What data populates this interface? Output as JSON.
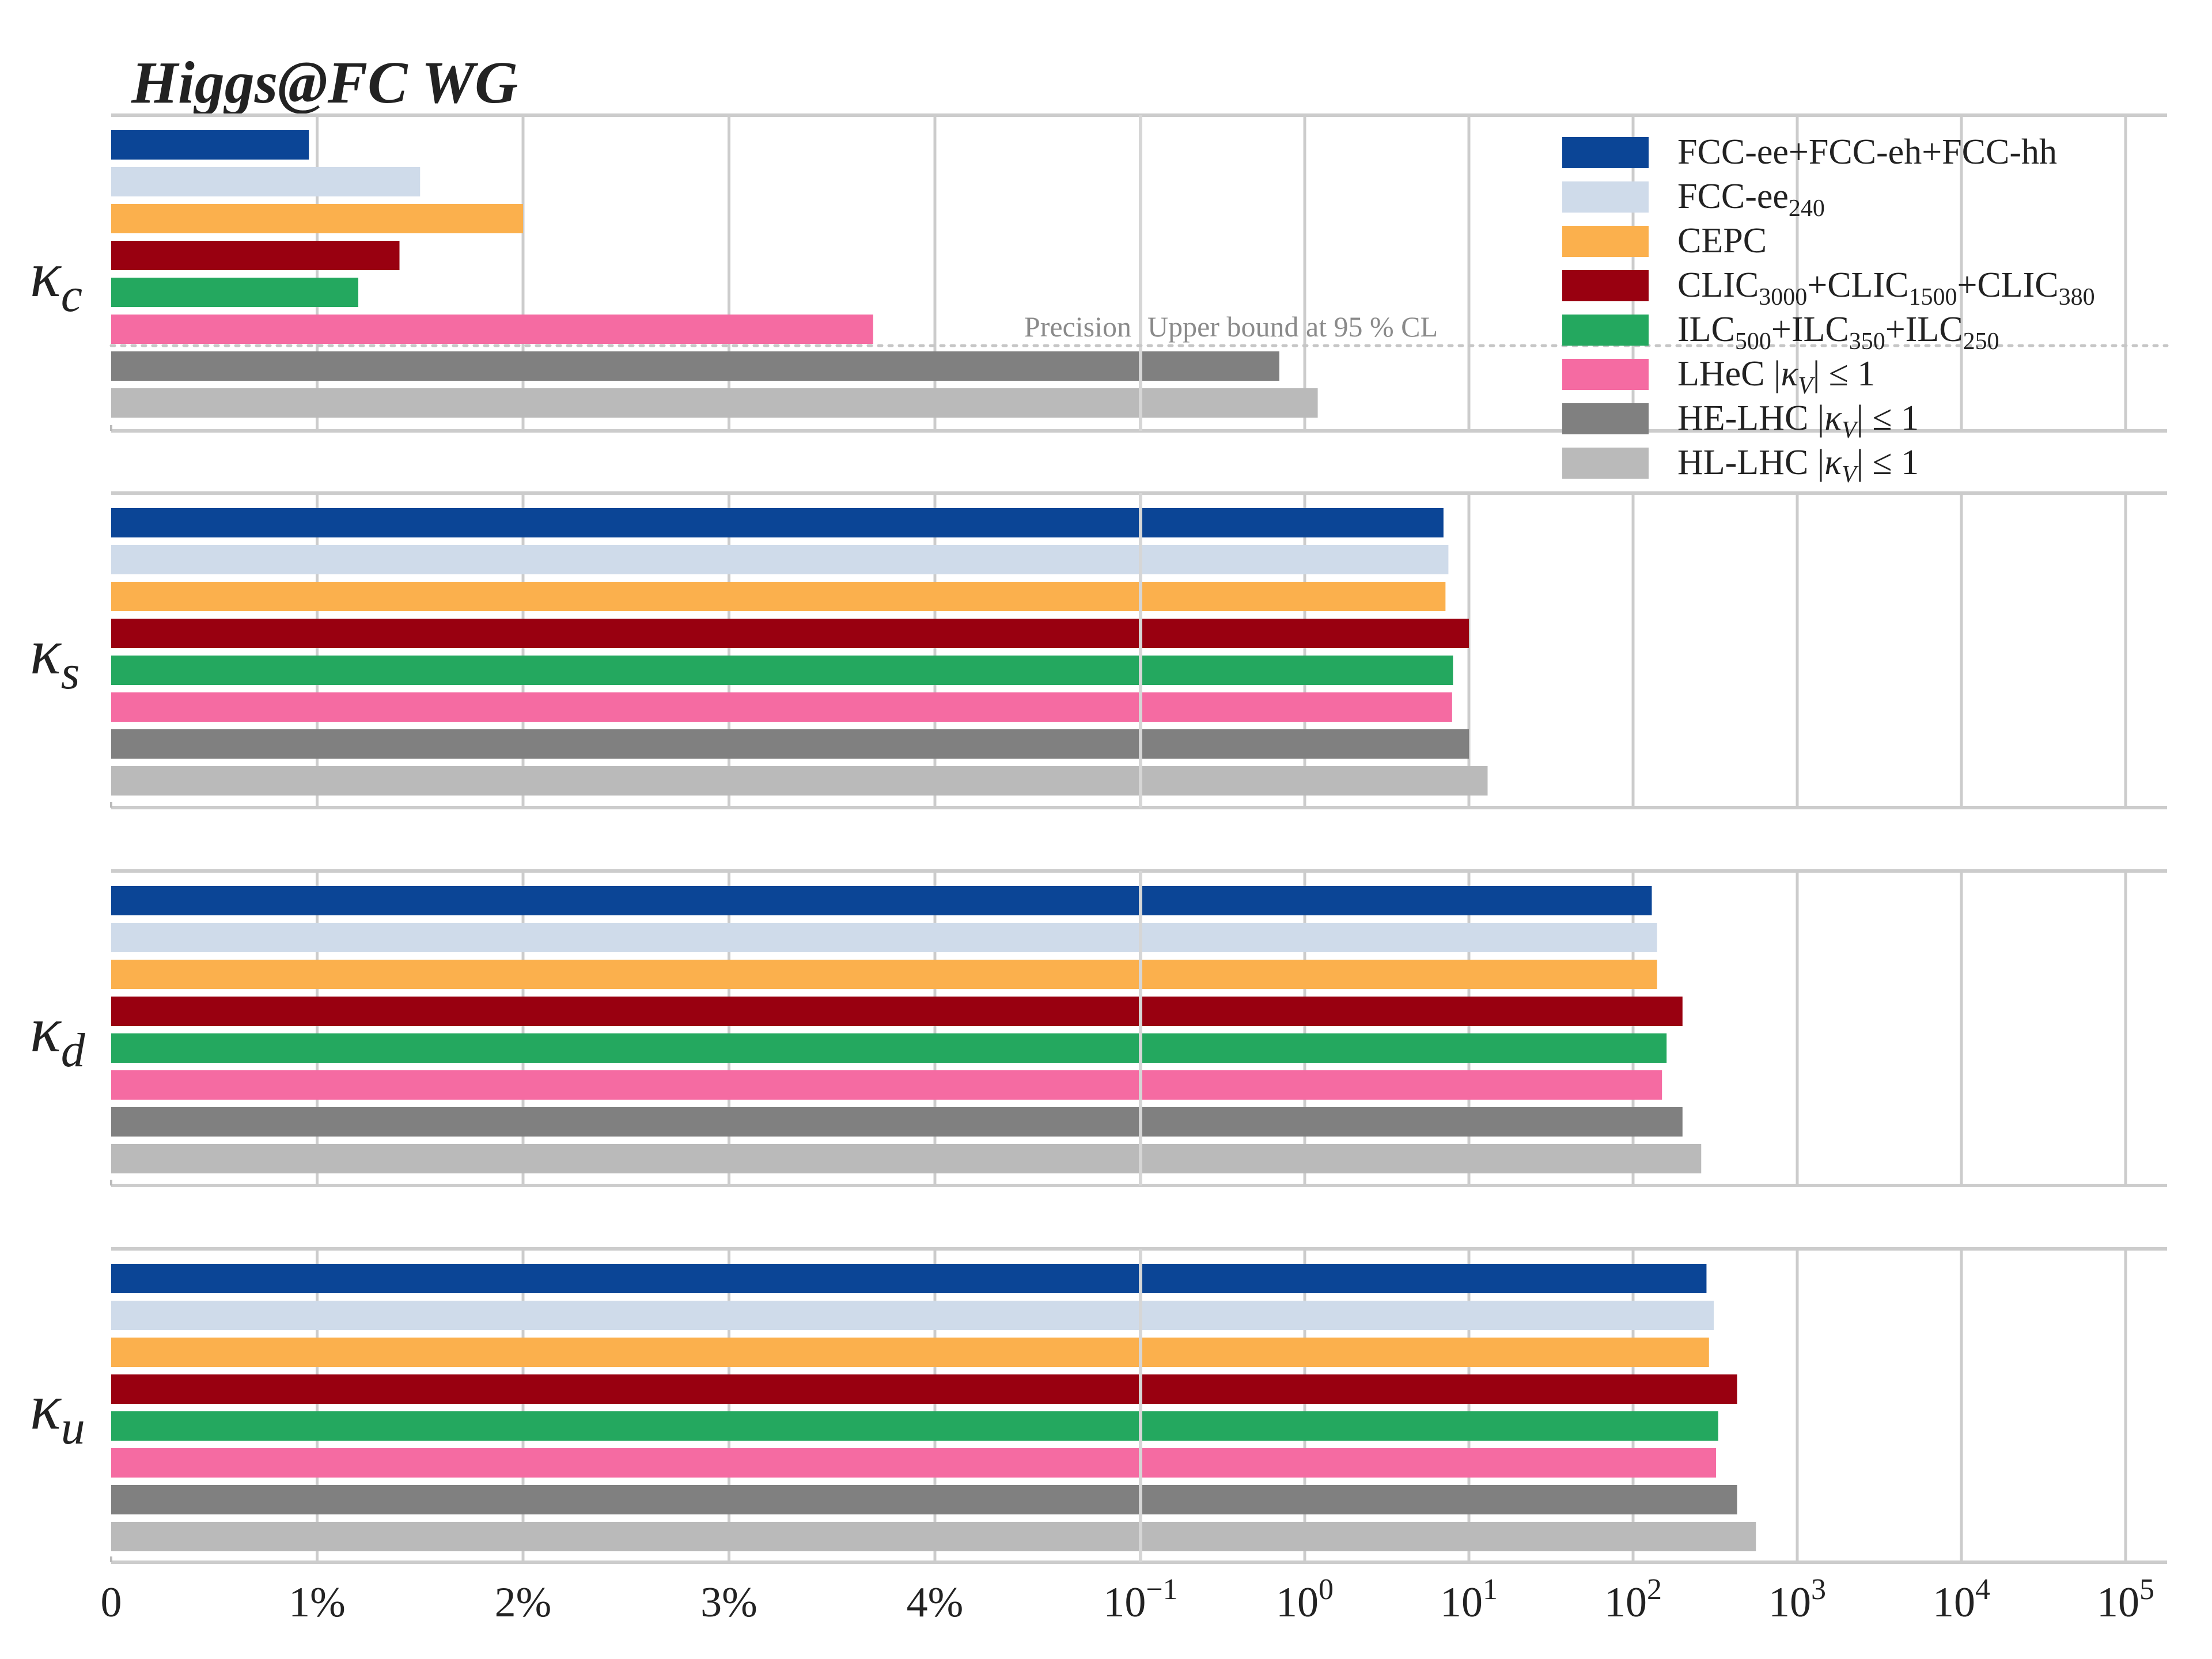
{
  "chart_data": {
    "type": "bar",
    "orientation": "horizontal",
    "title": "Higgs@FC WG",
    "x_axis": {
      "scale": "linear percent from 0 to 5 percent, then logarithmic from 10^-1 to 10^5",
      "tick_labels_linear": [
        "0",
        "1%",
        "2%",
        "3%",
        "4%"
      ],
      "tick_labels_log": [
        {
          "base": "10",
          "exp": "−1"
        },
        {
          "base": "10",
          "exp": "0"
        },
        {
          "base": "10",
          "exp": "1"
        },
        {
          "base": "10",
          "exp": "2"
        },
        {
          "base": "10",
          "exp": "3"
        },
        {
          "base": "10",
          "exp": "4"
        },
        {
          "base": "10",
          "exp": "5"
        }
      ]
    },
    "annotations": {
      "precision_label": "Precision",
      "upper_bound_label": "Upper bound at 95 % CL"
    },
    "legend_position": "top-right",
    "series": [
      {
        "key": "fcc_all",
        "color": "#0b4596",
        "legend": [
          {
            "t": "FCC-ee+FCC-eh+FCC-hh"
          }
        ]
      },
      {
        "key": "fcc_ee240",
        "color": "#cfdbea",
        "legend": [
          {
            "t": "FCC-ee"
          },
          {
            "t": "240",
            "sub": true
          }
        ]
      },
      {
        "key": "cepc",
        "color": "#fbb04d",
        "legend": [
          {
            "t": "CEPC"
          }
        ]
      },
      {
        "key": "clic",
        "color": "#990010",
        "legend": [
          {
            "t": "CLIC"
          },
          {
            "t": "3000",
            "sub": true
          },
          {
            "t": "+CLIC"
          },
          {
            "t": "1500",
            "sub": true
          },
          {
            "t": "+CLIC"
          },
          {
            "t": "380",
            "sub": true
          }
        ]
      },
      {
        "key": "ilc",
        "color": "#24a85f",
        "legend": [
          {
            "t": "ILC"
          },
          {
            "t": "500",
            "sub": true
          },
          {
            "t": "+ILC"
          },
          {
            "t": "350",
            "sub": true
          },
          {
            "t": "+ILC"
          },
          {
            "t": "250",
            "sub": true
          }
        ]
      },
      {
        "key": "lhec",
        "color": "#f56ba2",
        "legend": [
          {
            "t": "LHeC |"
          },
          {
            "t": "κ",
            "it": true
          },
          {
            "t": "V",
            "sub": true,
            "it": true
          },
          {
            "t": "| ≤ 1"
          }
        ]
      },
      {
        "key": "helhc",
        "color": "#808080",
        "legend": [
          {
            "t": "HE-LHC |"
          },
          {
            "t": "κ",
            "it": true
          },
          {
            "t": "V",
            "sub": true,
            "it": true
          },
          {
            "t": "| ≤ 1"
          }
        ]
      },
      {
        "key": "hllhc",
        "color": "#bababa",
        "legend": [
          {
            "t": "HL-LHC |"
          },
          {
            "t": "κ",
            "it": true
          },
          {
            "t": "V",
            "sub": true,
            "it": true
          },
          {
            "t": "| ≤ 1"
          }
        ]
      }
    ],
    "panels": [
      {
        "label": "κ",
        "label_sub": "c",
        "bars": [
          {
            "kind": "percent",
            "value": 0.96
          },
          {
            "kind": "percent",
            "value": 1.5
          },
          {
            "kind": "percent",
            "value": 2.0
          },
          {
            "kind": "percent",
            "value": 1.4
          },
          {
            "kind": "percent",
            "value": 1.2
          },
          {
            "kind": "percent",
            "value": 3.7
          },
          {
            "kind": "bound",
            "value": 0.7
          },
          {
            "kind": "bound",
            "value": 1.2
          }
        ]
      },
      {
        "label": "κ",
        "label_sub": "s",
        "bars": [
          {
            "kind": "bound",
            "value": 7.0
          },
          {
            "kind": "bound",
            "value": 7.5
          },
          {
            "kind": "bound",
            "value": 7.2
          },
          {
            "kind": "bound",
            "value": 10.0
          },
          {
            "kind": "bound",
            "value": 8.0
          },
          {
            "kind": "bound",
            "value": 7.9
          },
          {
            "kind": "bound",
            "value": 10.0
          },
          {
            "kind": "bound",
            "value": 13.0
          }
        ]
      },
      {
        "label": "κ",
        "label_sub": "d",
        "bars": [
          {
            "kind": "bound",
            "value": 130
          },
          {
            "kind": "bound",
            "value": 140
          },
          {
            "kind": "bound",
            "value": 140
          },
          {
            "kind": "bound",
            "value": 200
          },
          {
            "kind": "bound",
            "value": 160
          },
          {
            "kind": "bound",
            "value": 150
          },
          {
            "kind": "bound",
            "value": 200
          },
          {
            "kind": "bound",
            "value": 260
          }
        ]
      },
      {
        "label": "κ",
        "label_sub": "u",
        "bars": [
          {
            "kind": "bound",
            "value": 280
          },
          {
            "kind": "bound",
            "value": 310
          },
          {
            "kind": "bound",
            "value": 290
          },
          {
            "kind": "bound",
            "value": 430
          },
          {
            "kind": "bound",
            "value": 330
          },
          {
            "kind": "bound",
            "value": 320
          },
          {
            "kind": "bound",
            "value": 430
          },
          {
            "kind": "bound",
            "value": 560
          }
        ]
      }
    ]
  }
}
